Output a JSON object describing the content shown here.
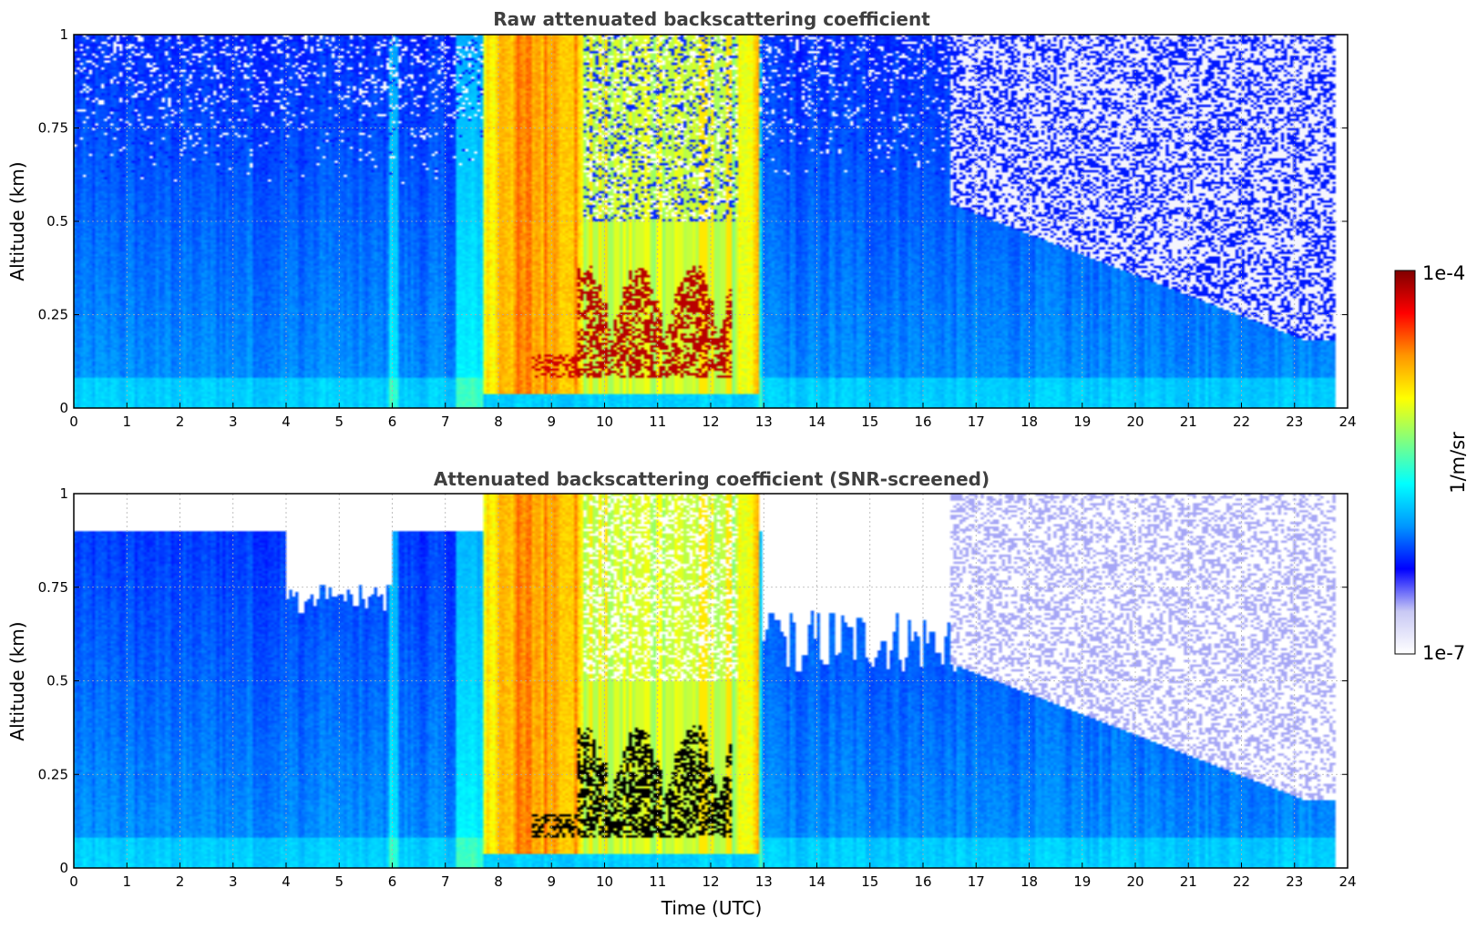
{
  "colors": {
    "colormap": [
      "#ffffff",
      "#c8c8f4",
      "#0000ff",
      "#0096ff",
      "#00ffff",
      "#80ff80",
      "#ffff00",
      "#ff9600",
      "#ff0000",
      "#800000"
    ],
    "screened_out": "#ffffff",
    "saturated": "#000000"
  },
  "chart_data": [
    {
      "type": "heatmap",
      "title": "Raw attenuated backscattering coefficient",
      "xlabel": "",
      "ylabel": "Altitude (km)",
      "xlim": [
        0,
        24
      ],
      "ylim": [
        0,
        1
      ],
      "x_ticks": [
        "0",
        "1",
        "2",
        "3",
        "4",
        "5",
        "6",
        "7",
        "8",
        "9",
        "10",
        "11",
        "12",
        "13",
        "14",
        "15",
        "16",
        "17",
        "18",
        "19",
        "20",
        "21",
        "22",
        "23",
        "24"
      ],
      "y_ticks": [
        "0",
        "0.25",
        "0.5",
        "0.75",
        "1"
      ],
      "grid": true,
      "screened": false
    },
    {
      "type": "heatmap",
      "title": "Attenuated backscattering coefficient (SNR-screened)",
      "xlabel": "Time (UTC)",
      "ylabel": "Altitude (km)",
      "xlim": [
        0,
        24
      ],
      "ylim": [
        0,
        1
      ],
      "x_ticks": [
        "0",
        "1",
        "2",
        "3",
        "4",
        "5",
        "6",
        "7",
        "8",
        "9",
        "10",
        "11",
        "12",
        "13",
        "14",
        "15",
        "16",
        "17",
        "18",
        "19",
        "20",
        "21",
        "22",
        "23",
        "24"
      ],
      "y_ticks": [
        "0",
        "0.25",
        "0.5",
        "0.75",
        "1"
      ],
      "grid": true,
      "screened": true
    }
  ],
  "colorbar": {
    "label": "1/m/sr",
    "max_label": "1e-4",
    "min_label": "1e-7",
    "range": [
      1e-07,
      0.0001
    ],
    "scale": "log"
  }
}
